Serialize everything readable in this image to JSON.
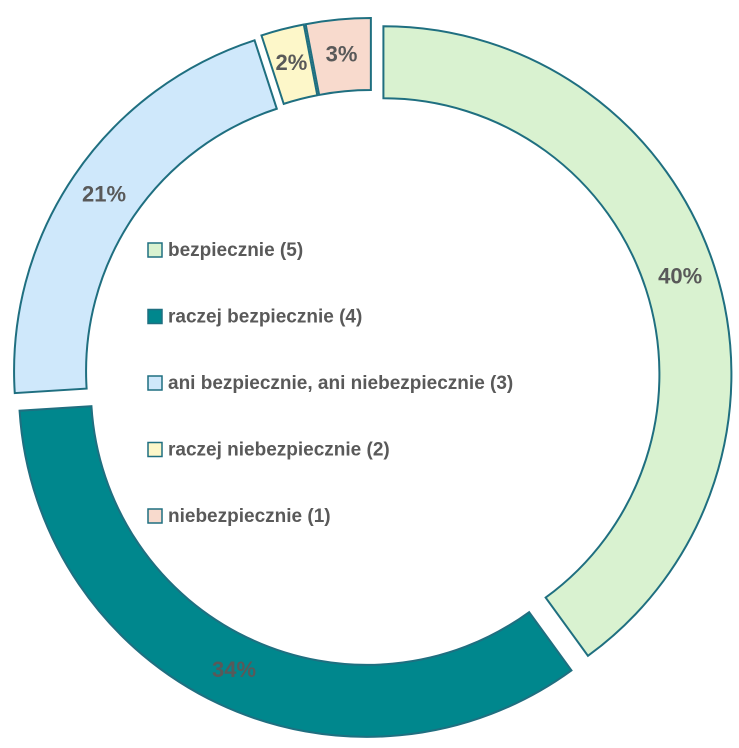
{
  "chart_data": {
    "type": "donut",
    "categories": [
      "bezpiecznie (5)",
      "raczej bezpiecznie (4)",
      "ani bezpiecznie, ani niebezpiecznie (3)",
      "raczej niebezpiecznie (2)",
      "niebezpiecznie (1)"
    ],
    "values": [
      40,
      34,
      21,
      2,
      3
    ],
    "value_labels": [
      "40%",
      "34%",
      "21%",
      "2%",
      "3%"
    ],
    "colors": [
      "#d9f2d0",
      "#00878d",
      "#cfe8fb",
      "#fdf7c9",
      "#f8dacd"
    ]
  }
}
